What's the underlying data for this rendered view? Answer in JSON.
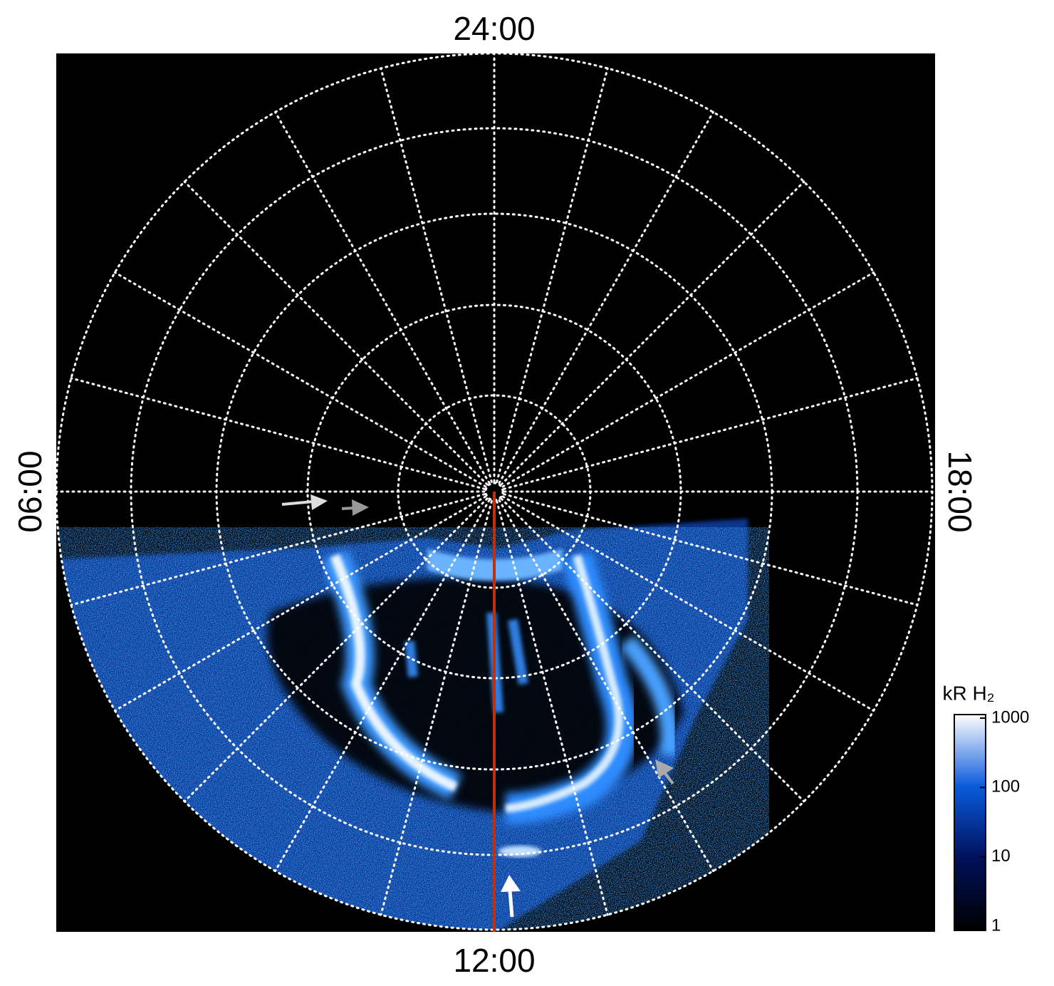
{
  "time_labels": {
    "top": "24:00",
    "bottom": "12:00",
    "left": "06:00",
    "right": "18:00"
  },
  "colorbar": {
    "title": "kR H₂",
    "scale": "log",
    "lim": [
      1,
      1000
    ],
    "ticks": [
      1,
      10,
      100,
      1000
    ],
    "colors": [
      "#000000",
      "#00105a",
      "#0a5adc",
      "#ffffff"
    ]
  }
}
